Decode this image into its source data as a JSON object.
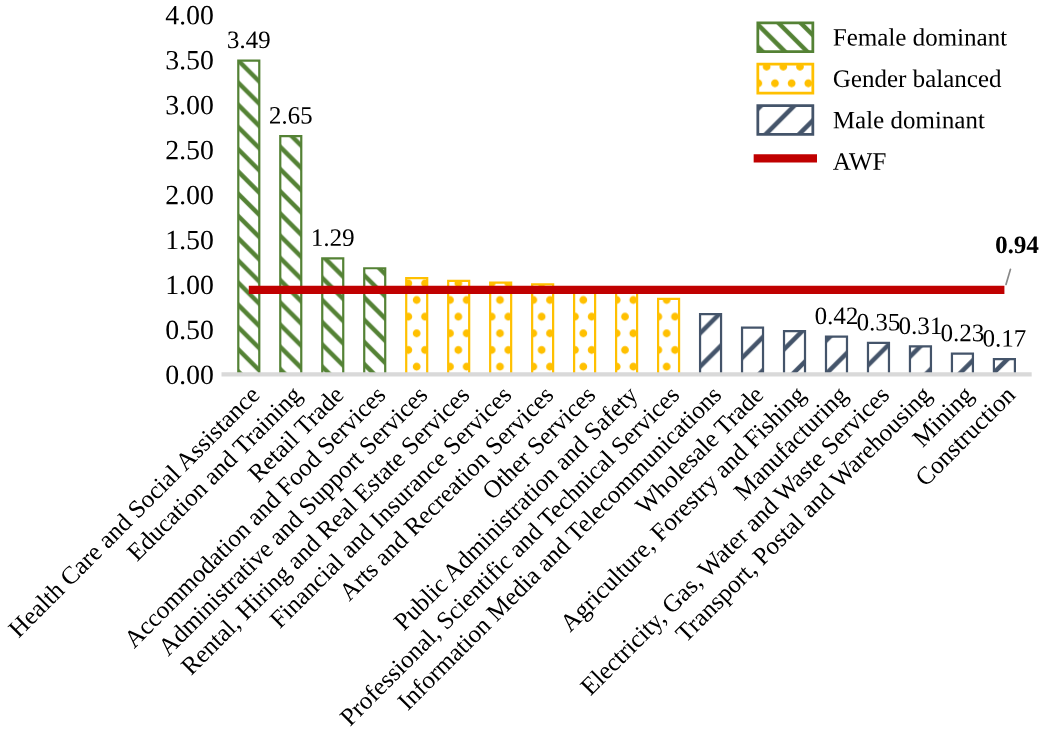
{
  "chart_data": {
    "type": "bar",
    "categories": [
      "Health Care and Social Assistance",
      "Education and Training",
      "Retail Trade",
      "Accommodation and Food Services",
      "Administrative and Support Services",
      "Rental, Hiring and Real Estate Services",
      "Financial and Insurance Services",
      "Arts and Recreation Services",
      "Other Services",
      "Public Administration and Safety",
      "Professional, Scientific and Technical Services",
      "Information Media and Telecommunications",
      "Wholesale Trade",
      "Agriculture, Forestry and Fishing",
      "Manufacturing",
      "Electricity, Gas, Water and Waste Services",
      "Transport, Postal and Warehousing",
      "Mining",
      "Construction"
    ],
    "series": [
      {
        "name": "Female dominant",
        "color": "#548235",
        "values": [
          3.49,
          2.65,
          1.29,
          1.18,
          null,
          null,
          null,
          null,
          null,
          null,
          null,
          null,
          null,
          null,
          null,
          null,
          null,
          null,
          null
        ],
        "value_labels": [
          "3.49",
          "2.65",
          "1.29",
          null,
          null,
          null,
          null,
          null,
          null,
          null,
          null,
          null,
          null,
          null,
          null,
          null,
          null,
          null,
          null
        ]
      },
      {
        "name": "Gender balanced",
        "color": "#ffc000",
        "values": [
          null,
          null,
          null,
          null,
          1.07,
          1.04,
          1.02,
          1.0,
          0.92,
          0.92,
          0.84,
          null,
          null,
          null,
          null,
          null,
          null,
          null,
          null
        ]
      },
      {
        "name": "Male dominant",
        "color": "#44546a",
        "values": [
          null,
          null,
          null,
          null,
          null,
          null,
          null,
          null,
          null,
          null,
          null,
          0.67,
          0.52,
          0.48,
          0.42,
          0.35,
          0.31,
          0.23,
          0.17
        ],
        "value_labels": [
          null,
          null,
          null,
          null,
          null,
          null,
          null,
          null,
          null,
          null,
          null,
          null,
          null,
          null,
          "0.42",
          "0.35",
          "0.31",
          "0.23",
          "0.17"
        ]
      },
      {
        "name": "AWF",
        "type": "line",
        "color": "#c00000",
        "values": [
          0.94,
          0.94,
          0.94,
          0.94,
          0.94,
          0.94,
          0.94,
          0.94,
          0.94,
          0.94,
          0.94,
          0.94,
          0.94,
          0.94,
          0.94,
          0.94,
          0.94,
          0.94,
          0.94
        ],
        "value_labels": [
          null,
          null,
          null,
          null,
          null,
          null,
          null,
          null,
          null,
          null,
          null,
          null,
          null,
          null,
          null,
          null,
          null,
          null,
          "0.94"
        ]
      }
    ],
    "ylim": [
      0,
      4
    ],
    "yticks": [
      {
        "value": 0,
        "label": "0.00"
      },
      {
        "value": 0.5,
        "label": "0.50"
      },
      {
        "value": 1,
        "label": "1.00"
      },
      {
        "value": 1.5,
        "label": "1.50"
      },
      {
        "value": 2,
        "label": "2.00"
      },
      {
        "value": 2.5,
        "label": "2.50"
      },
      {
        "value": 3,
        "label": "3.00"
      },
      {
        "value": 3.5,
        "label": "3.50"
      },
      {
        "value": 4,
        "label": "4.00"
      }
    ],
    "grid": false,
    "legend": "top right"
  }
}
